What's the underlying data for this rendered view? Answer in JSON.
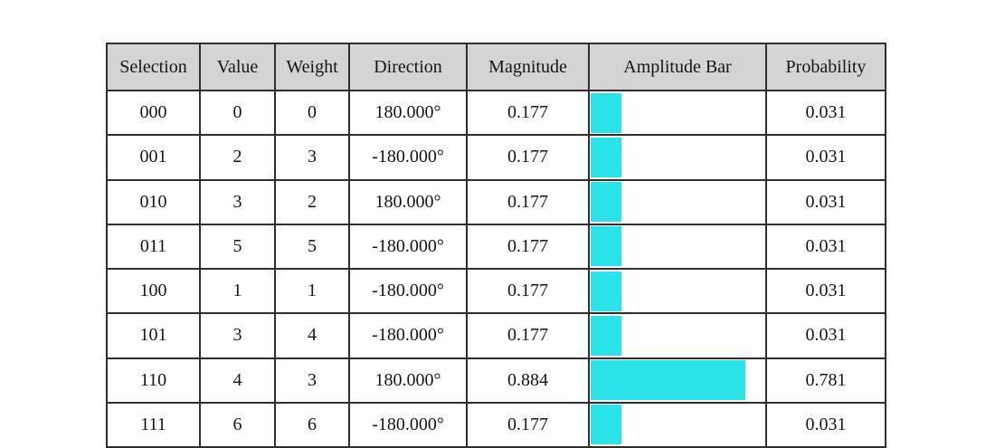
{
  "chart_data": {
    "type": "table",
    "columns": [
      "Selection",
      "Value",
      "Weight",
      "Direction",
      "Magnitude",
      "Amplitude Bar",
      "Probability"
    ],
    "column_keys": [
      "selection",
      "value",
      "weight",
      "direction",
      "magnitude",
      "amplitude_bar",
      "probability"
    ],
    "rows": [
      {
        "selection": "000",
        "value": "0",
        "weight": "0",
        "direction": "180.000°",
        "magnitude": "0.177",
        "amplitude_fraction": 0.177,
        "probability": "0.031"
      },
      {
        "selection": "001",
        "value": "2",
        "weight": "3",
        "direction": "-180.000°",
        "magnitude": "0.177",
        "amplitude_fraction": 0.177,
        "probability": "0.031"
      },
      {
        "selection": "010",
        "value": "3",
        "weight": "2",
        "direction": "180.000°",
        "magnitude": "0.177",
        "amplitude_fraction": 0.177,
        "probability": "0.031"
      },
      {
        "selection": "011",
        "value": "5",
        "weight": "5",
        "direction": "-180.000°",
        "magnitude": "0.177",
        "amplitude_fraction": 0.177,
        "probability": "0.031"
      },
      {
        "selection": "100",
        "value": "1",
        "weight": "1",
        "direction": "-180.000°",
        "magnitude": "0.177",
        "amplitude_fraction": 0.177,
        "probability": "0.031"
      },
      {
        "selection": "101",
        "value": "3",
        "weight": "4",
        "direction": "-180.000°",
        "magnitude": "0.177",
        "amplitude_fraction": 0.177,
        "probability": "0.031"
      },
      {
        "selection": "110",
        "value": "4",
        "weight": "3",
        "direction": "180.000°",
        "magnitude": "0.884",
        "amplitude_fraction": 0.884,
        "probability": "0.781"
      },
      {
        "selection": "111",
        "value": "6",
        "weight": "6",
        "direction": "-180.000°",
        "magnitude": "0.177",
        "amplitude_fraction": 0.177,
        "probability": "0.031"
      }
    ],
    "colors": {
      "bar": "#2ae3ea",
      "header_bg": "#d4d4d4",
      "border": "#2e2e2e"
    }
  }
}
